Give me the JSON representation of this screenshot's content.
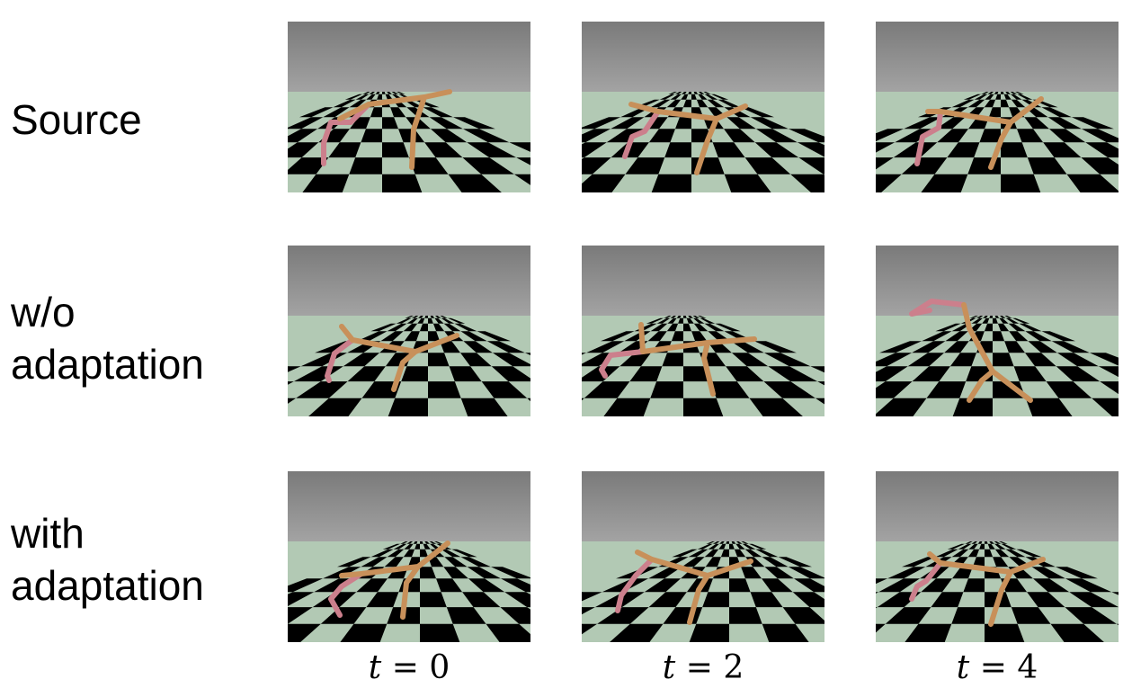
{
  "rows": [
    {
      "label": "Source"
    },
    {
      "label": "w/o\nadaptation"
    },
    {
      "label": "with\nadaptation"
    }
  ],
  "columns": [
    {
      "var": "t",
      "op": " = ",
      "value": "0"
    },
    {
      "var": "t",
      "op": " = ",
      "value": "2"
    },
    {
      "var": "t",
      "op": " = ",
      "value": "4"
    }
  ],
  "colors": {
    "sky_top": "#7a7a7a",
    "sky_bottom": "#a3a3a3",
    "tile_light": "#b2c9b4",
    "tile_dark": "#000000",
    "body_color": "#c8905a",
    "foreleg_color": "#cc7f8c"
  }
}
